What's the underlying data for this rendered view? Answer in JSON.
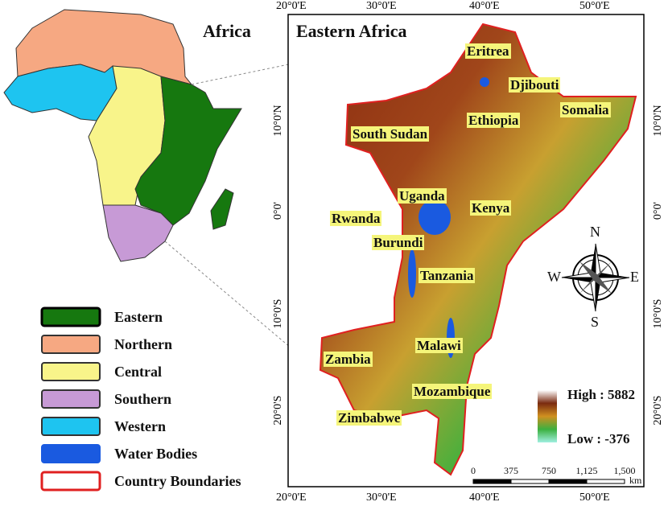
{
  "inset": {
    "title": "Africa"
  },
  "map": {
    "title": "Eastern Africa",
    "top_labels": [
      "20°0'E",
      "30°0'E",
      "40°0'E",
      "50°0'E"
    ],
    "bottom_labels": [
      "20°0'E",
      "30°0'E",
      "40°0'E",
      "50°0'E"
    ],
    "left_labels": [
      "10°0'N",
      "0°0'",
      "10°0'S",
      "20°0'S"
    ],
    "right_labels": [
      "10°0'N",
      "0°0'",
      "10°0'S",
      "20°0'S"
    ],
    "countries": [
      "Eritrea",
      "Djibouti",
      "Somalia",
      "Ethiopia",
      "South Sudan",
      "Uganda",
      "Kenya",
      "Rwanda",
      "Burundi",
      "Tanzania",
      "Malawi",
      "Zambia",
      "Mozambique",
      "Zimbabwe"
    ]
  },
  "legend": {
    "items": [
      "Eastern",
      "Northern",
      "Central",
      "Southern",
      "Western",
      "Water Bodies",
      "Country Boundaries"
    ]
  },
  "elevation": {
    "high": "High : 5882",
    "low": "Low : -376"
  },
  "compass": {
    "n": "N",
    "e": "E",
    "s": "S",
    "w": "W"
  },
  "scale": {
    "ticks": [
      "0",
      "375",
      "750",
      "1,125",
      "1,500"
    ],
    "unit": "km"
  }
}
